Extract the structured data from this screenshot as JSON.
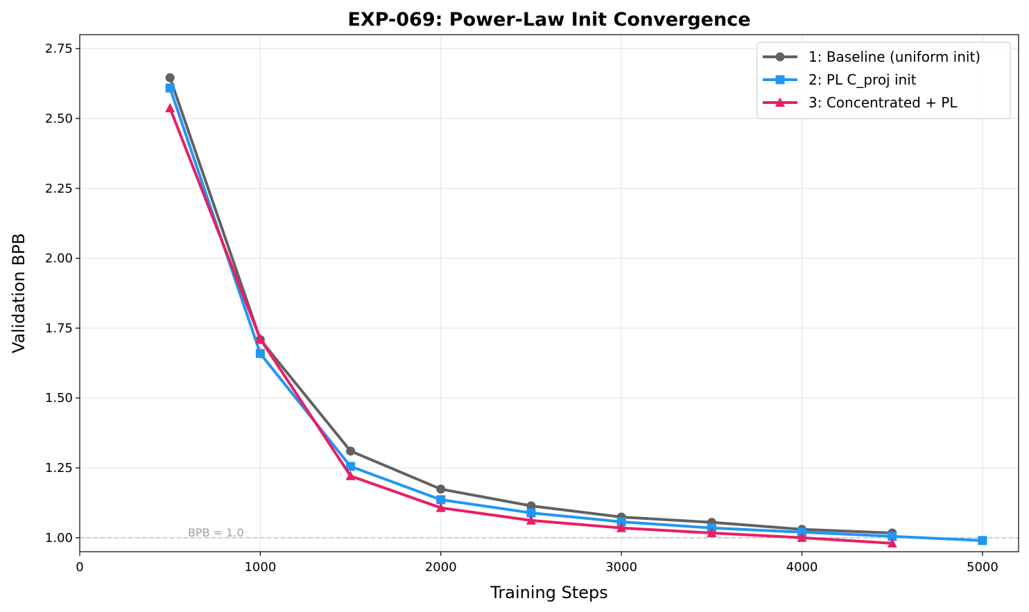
{
  "chart_data": {
    "type": "line",
    "title": "EXP-069: Power-Law Init Convergence",
    "xlabel": "Training Steps",
    "ylabel": "Validation BPB",
    "xlim": [
      0,
      5200
    ],
    "ylim": [
      0.95,
      2.8
    ],
    "xticks": [
      0,
      1000,
      2000,
      3000,
      4000,
      5000
    ],
    "yticks": [
      1.0,
      1.25,
      1.5,
      1.75,
      2.0,
      2.25,
      2.5,
      2.75
    ],
    "xtick_labels": [
      "0",
      "1000",
      "2000",
      "3000",
      "4000",
      "5000"
    ],
    "ytick_labels": [
      "1.00",
      "1.25",
      "1.50",
      "1.75",
      "2.00",
      "2.25",
      "2.50",
      "2.75"
    ],
    "grid": true,
    "legend_position": "top-right",
    "reference_line": {
      "y": 1.0,
      "label": "BPB = 1.0",
      "color": "#bdbdbd"
    },
    "series": [
      {
        "name": "1: Baseline (uniform init)",
        "color": "#616161",
        "marker": "circle",
        "x": [
          500,
          1000,
          1500,
          2000,
          2500,
          3000,
          3500,
          4000,
          4500
        ],
        "y": [
          2.646,
          1.709,
          1.31,
          1.174,
          1.114,
          1.074,
          1.055,
          1.03,
          1.017
        ]
      },
      {
        "name": "2: PL C_proj init",
        "color": "#2196F3",
        "marker": "square",
        "x": [
          500,
          1000,
          1500,
          2000,
          2500,
          3000,
          3500,
          4000,
          4500,
          5000
        ],
        "y": [
          2.609,
          1.659,
          1.255,
          1.136,
          1.089,
          1.057,
          1.035,
          1.02,
          1.005,
          0.99
        ]
      },
      {
        "name": "3: Concentrated + PL",
        "color": "#E91E63",
        "marker": "triangle",
        "x": [
          500,
          1000,
          1500,
          2000,
          2500,
          3000,
          3500,
          4000,
          4500
        ],
        "y": [
          2.537,
          1.711,
          1.221,
          1.107,
          1.062,
          1.035,
          1.017,
          1.0,
          0.98
        ]
      }
    ]
  }
}
